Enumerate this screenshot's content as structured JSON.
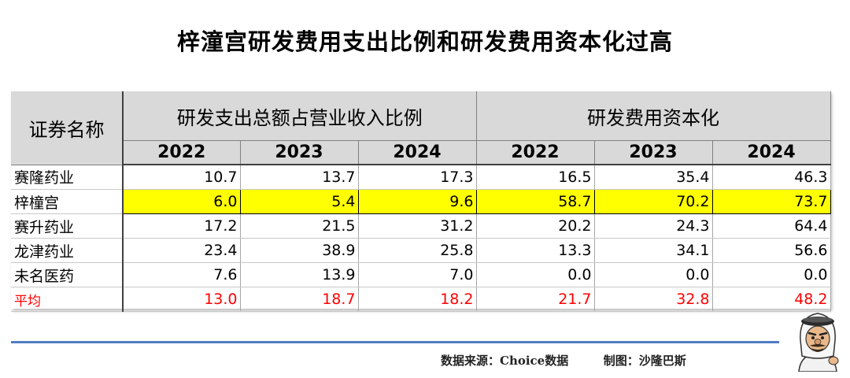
{
  "title": "梓潼宫研发费用支出比例和研发费用资本化过高",
  "chart_data": {
    "type": "table",
    "title": "梓潼宫研发费用支出比例和研发费用资本化过高",
    "header": {
      "name_col": "证券名称",
      "groups": [
        "研发支出总额占营业收入比例",
        "研发费用资本化"
      ],
      "years": [
        "2022",
        "2023",
        "2024",
        "2022",
        "2023",
        "2024"
      ]
    },
    "rows": [
      {
        "name": "赛隆药业",
        "values": [
          "10.7",
          "13.7",
          "17.3",
          "16.5",
          "35.4",
          "46.3"
        ]
      },
      {
        "name": "梓橦宫",
        "values": [
          "6.0",
          "5.4",
          "9.6",
          "58.7",
          "70.2",
          "73.7"
        ],
        "highlight": true
      },
      {
        "name": "赛升药业",
        "values": [
          "17.2",
          "21.5",
          "31.2",
          "20.2",
          "24.3",
          "64.4"
        ]
      },
      {
        "name": "龙津药业",
        "values": [
          "23.4",
          "38.9",
          "25.8",
          "13.3",
          "34.1",
          "56.6"
        ]
      },
      {
        "name": "未名医药",
        "values": [
          "7.6",
          "13.9",
          "7.0",
          "0.0",
          "0.0",
          "0.0"
        ]
      },
      {
        "name": "平均",
        "values": [
          "13.0",
          "18.7",
          "18.2",
          "21.7",
          "32.8",
          "48.2"
        ],
        "average": true
      }
    ],
    "colors": {
      "highlight": "#ffff00",
      "average_text": "#ff0000",
      "header_bg": "#d9d9d9",
      "rule": "#4f7cc2"
    }
  },
  "footer": {
    "source": "数据来源：Choice数据",
    "made_by": "制图：沙隆巴斯"
  },
  "mascot_icon": "cartoon-sheikh-mascot"
}
